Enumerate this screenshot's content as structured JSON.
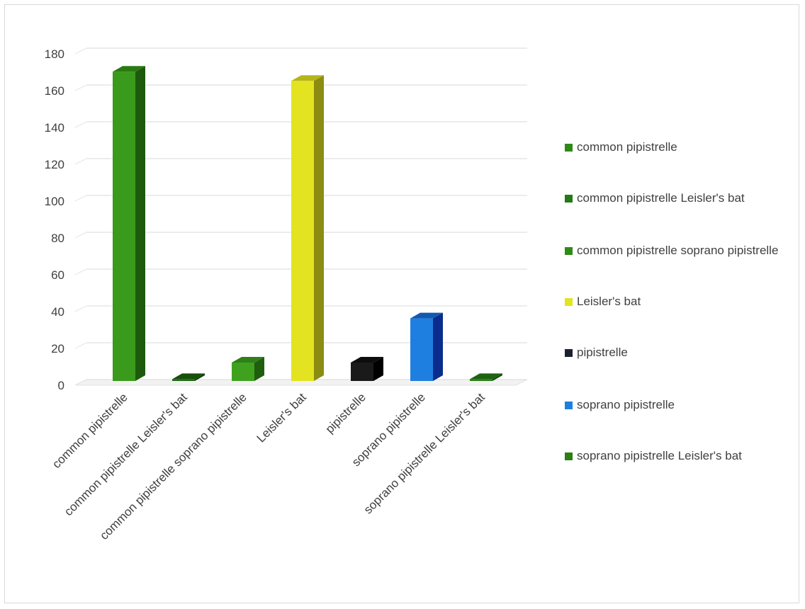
{
  "chart_data": {
    "type": "bar",
    "categories": [
      "common pipistrelle",
      "common pipistrelle Leisler's bat",
      "common pipistrelle soprano pipistrelle",
      "Leisler's bat",
      "pipistrelle",
      "soprano pipistrelle",
      "soprano pipistrelle Leisler's bat"
    ],
    "values": [
      168,
      1,
      10,
      163,
      10,
      34,
      1
    ],
    "colors": [
      "#3a9a1c",
      "#1f6b12",
      "#3fa21f",
      "#e3e321",
      "#1a1a1a",
      "#1f7fe0",
      "#2b7f14"
    ],
    "side_colors": [
      "#1e5a0c",
      "#0d3a06",
      "#1f5e0d",
      "#8c8c12",
      "#000000",
      "#0a2c8c",
      "#14470a"
    ],
    "top_colors": [
      "#2a7a12",
      "#174f0b",
      "#2f8018",
      "#b5b51a",
      "#0d0d0d",
      "#1558b0",
      "#1f6310"
    ],
    "legend": [
      {
        "label": "common pipistrelle",
        "color": "#2d8a17"
      },
      {
        "label": "common pipistrelle Leisler's bat",
        "color": "#237a14"
      },
      {
        "label": "common pipistrelle soprano pipistrelle",
        "color": "#2f8a18"
      },
      {
        "label": "Leisler's bat",
        "color": "#e3e321"
      },
      {
        "label": "pipistrelle",
        "color": "#1a2030"
      },
      {
        "label": "soprano pipistrelle",
        "color": "#1f7fe0"
      },
      {
        "label": "soprano pipistrelle Leisler's bat",
        "color": "#2b7f14"
      }
    ],
    "y_ticks": [
      0,
      20,
      40,
      60,
      80,
      100,
      120,
      140,
      160,
      180
    ],
    "ylim": [
      0,
      180
    ],
    "grid": true,
    "legend_position": "right",
    "title": "",
    "xlabel": "",
    "ylabel": ""
  }
}
